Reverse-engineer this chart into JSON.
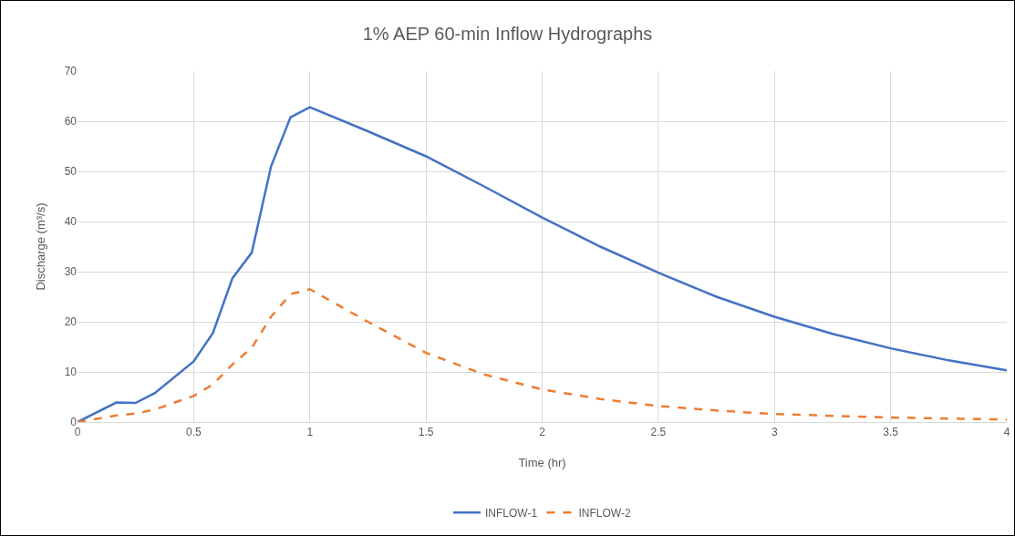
{
  "chart_data": {
    "type": "line",
    "title": "1% AEP 60-min Inflow Hydrographs",
    "xlabel": "Time (hr)",
    "ylabel": "Discharge (m³/s)",
    "xlim": [
      0,
      4
    ],
    "xticks": [
      0,
      0.5,
      1,
      1.5,
      2,
      2.5,
      3,
      3.5,
      4
    ],
    "ylim": [
      0,
      70
    ],
    "yticks": [
      0,
      10,
      20,
      30,
      40,
      50,
      60,
      70
    ],
    "grid": true,
    "legend": "bottom",
    "marker": "none",
    "series": [
      {
        "name": "INFLOW-1",
        "color": "#4472c4",
        "line_style": "solid",
        "x": [
          0,
          0.167,
          0.25,
          0.333,
          0.5,
          0.583,
          0.667,
          0.75,
          0.833,
          0.917,
          1,
          1.25,
          1.5,
          1.75,
          2,
          2.25,
          2.5,
          2.75,
          3,
          3.25,
          3.5,
          3.75,
          4
        ],
        "values": [
          0,
          3.9,
          3.8,
          5.8,
          12.1,
          17.8,
          28.7,
          33.8,
          51,
          60.8,
          62.8,
          58,
          53,
          47,
          40.8,
          35,
          29.8,
          25,
          21,
          17.6,
          14.7,
          12.3,
          10.3
        ]
      },
      {
        "name": "INFLOW-2",
        "color": "#ed7d31",
        "line_style": "dashed",
        "x": [
          0,
          0.167,
          0.25,
          0.333,
          0.5,
          0.583,
          0.667,
          0.75,
          0.833,
          0.917,
          1,
          1.25,
          1.5,
          1.75,
          2,
          2.25,
          2.5,
          2.75,
          3,
          3.5,
          4
        ],
        "values": [
          0,
          1.3,
          1.7,
          2.5,
          5.2,
          7.5,
          11.5,
          14.8,
          21,
          25.5,
          26.5,
          20,
          13.8,
          9.5,
          6.5,
          4.6,
          3.2,
          2.3,
          1.6,
          0.9,
          0.5
        ]
      }
    ]
  }
}
